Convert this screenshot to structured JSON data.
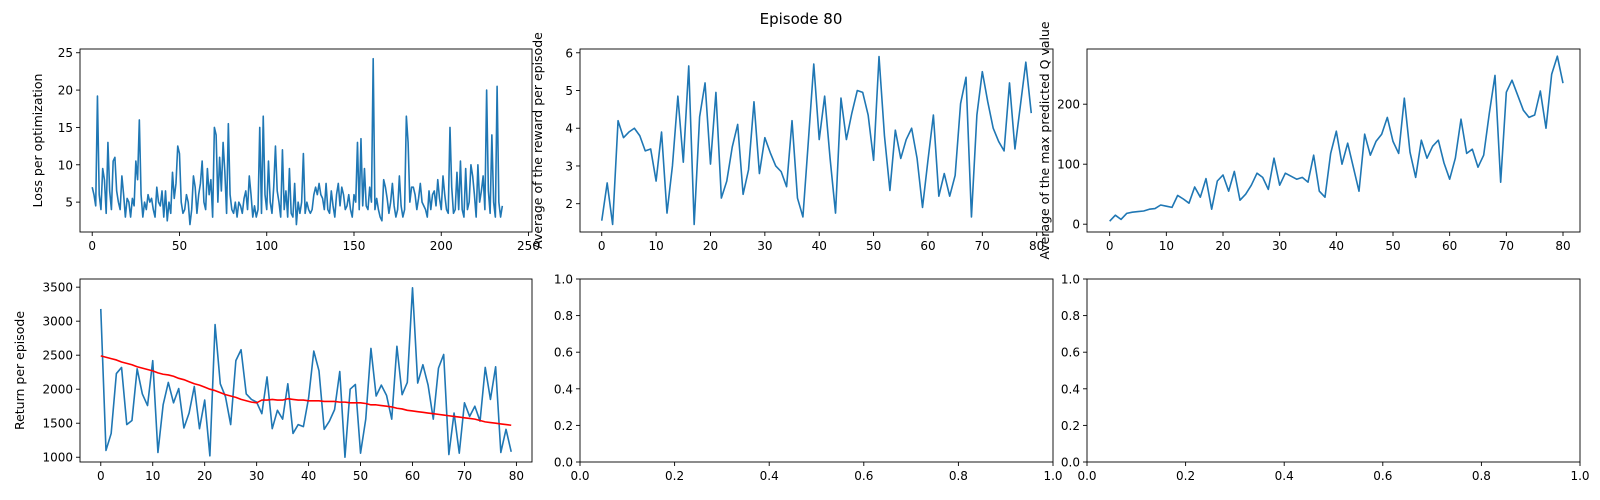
{
  "figure": {
    "title": "Episode 80"
  },
  "colors": {
    "series": "#1f77b4",
    "trend": "#ff0000",
    "axis": "#000000"
  },
  "chart_data": [
    {
      "type": "line",
      "xlabel": "",
      "ylabel": "Loss per optimization",
      "xlim": [
        -7,
        252
      ],
      "ylim": [
        1.0,
        25.5
      ],
      "xticks": [
        0,
        50,
        100,
        150,
        200,
        250
      ],
      "yticks": [
        5,
        10,
        15,
        20,
        25
      ],
      "series": [
        {
          "name": "",
          "x_start": 0,
          "x_step": 1,
          "y": [
            7.0,
            6.0,
            4.5,
            19.2,
            6.0,
            4.0,
            9.5,
            8.0,
            3.5,
            13.0,
            6.5,
            4.0,
            10.5,
            11.0,
            6.5,
            5.0,
            4.0,
            8.5,
            6.0,
            3.0,
            5.5,
            5.0,
            3.0,
            5.5,
            4.5,
            10.5,
            8.0,
            16.0,
            6.0,
            3.0,
            5.0,
            4.0,
            6.0,
            5.0,
            5.5,
            4.0,
            3.0,
            7.0,
            5.0,
            4.5,
            6.5,
            3.0,
            6.5,
            2.5,
            5.0,
            3.5,
            9.0,
            5.5,
            7.5,
            12.5,
            11.5,
            5.0,
            3.5,
            4.0,
            6.0,
            5.0,
            2.0,
            4.0,
            8.5,
            7.0,
            3.5,
            6.0,
            7.5,
            10.5,
            5.0,
            4.0,
            9.5,
            6.0,
            8.0,
            3.0,
            15.0,
            14.0,
            5.0,
            11.0,
            6.5,
            13.0,
            9.0,
            3.5,
            15.5,
            6.0,
            4.0,
            3.5,
            5.0,
            3.0,
            5.0,
            4.5,
            3.5,
            5.5,
            6.5,
            4.0,
            8.5,
            6.0,
            3.0,
            4.5,
            3.0,
            4.0,
            15.0,
            3.5,
            16.5,
            6.0,
            4.0,
            10.5,
            5.0,
            3.5,
            7.0,
            12.5,
            6.5,
            5.0,
            3.0,
            12.0,
            4.0,
            6.5,
            3.0,
            9.5,
            3.5,
            3.0,
            7.5,
            2.0,
            5.0,
            3.5,
            5.0,
            11.5,
            3.5,
            5.0,
            4.0,
            3.5,
            4.0,
            6.0,
            7.0,
            6.0,
            7.5,
            6.0,
            5.5,
            4.0,
            7.5,
            4.0,
            3.5,
            6.5,
            4.5,
            3.0,
            6.0,
            7.5,
            4.5,
            7.0,
            6.0,
            4.0,
            4.5,
            6.0,
            4.0,
            3.0,
            6.0,
            5.0,
            13.0,
            4.0,
            13.5,
            4.5,
            9.5,
            4.5,
            4.0,
            7.0,
            5.0,
            24.2,
            4.0,
            5.5,
            4.0,
            3.0,
            2.5,
            8.0,
            7.0,
            5.5,
            3.5,
            5.0,
            7.5,
            4.5,
            3.0,
            4.0,
            8.5,
            4.5,
            3.0,
            4.0,
            16.5,
            13.0,
            5.0,
            7.0,
            7.0,
            6.0,
            4.0,
            5.5,
            7.5,
            5.0,
            4.5,
            4.0,
            3.0,
            6.5,
            4.0,
            6.0,
            6.5,
            4.5,
            8.0,
            5.5,
            4.0,
            8.5,
            6.0,
            4.0,
            3.5,
            15.0,
            7.0,
            3.5,
            4.0,
            9.0,
            4.0,
            10.5,
            4.0,
            3.0,
            9.5,
            4.0,
            5.0,
            10.0,
            8.5,
            6.0,
            3.0,
            10.0,
            5.0,
            6.5,
            8.5,
            4.0,
            20.0,
            6.5,
            3.5,
            14.0,
            5.0,
            3.0,
            20.5,
            5.0,
            3.0,
            4.5
          ]
        }
      ]
    },
    {
      "type": "line",
      "xlabel": "",
      "ylabel": "Average of the reward per episode",
      "xlim": [
        -4,
        83
      ],
      "ylim": [
        1.25,
        6.1
      ],
      "xticks": [
        0,
        10,
        20,
        30,
        40,
        50,
        60,
        70,
        80
      ],
      "yticks": [
        2,
        3,
        4,
        5,
        6
      ],
      "series": [
        {
          "name": "",
          "x_start": 0,
          "x_step": 1,
          "y": [
            1.55,
            2.55,
            1.45,
            4.2,
            3.75,
            3.9,
            4.0,
            3.8,
            3.4,
            3.45,
            2.6,
            3.9,
            1.75,
            3.0,
            4.85,
            3.1,
            5.65,
            1.45,
            4.3,
            5.2,
            3.05,
            4.95,
            2.15,
            2.6,
            3.5,
            4.1,
            2.25,
            2.9,
            4.7,
            2.8,
            3.75,
            3.35,
            3.0,
            2.85,
            2.45,
            4.2,
            2.15,
            1.65,
            3.65,
            5.7,
            3.7,
            4.85,
            3.2,
            1.75,
            4.8,
            3.7,
            4.4,
            5.0,
            4.95,
            4.35,
            3.15,
            5.9,
            3.8,
            2.35,
            3.95,
            3.2,
            3.7,
            4.0,
            3.2,
            1.9,
            3.15,
            4.35,
            2.2,
            2.8,
            2.2,
            2.75,
            4.65,
            5.35,
            1.65,
            4.35,
            5.5,
            4.7,
            4.0,
            3.65,
            3.4,
            5.2,
            3.45,
            4.6,
            5.75,
            4.4
          ]
        }
      ]
    },
    {
      "type": "line",
      "xlabel": "",
      "ylabel": "Average of the max predicted Q value",
      "xlim": [
        -4,
        83
      ],
      "ylim": [
        -13,
        292
      ],
      "xticks": [
        0,
        10,
        20,
        30,
        40,
        50,
        60,
        70,
        80
      ],
      "yticks": [
        0,
        100,
        200
      ],
      "series": [
        {
          "name": "",
          "x_start": 0,
          "x_step": 1,
          "y": [
            5,
            15,
            8,
            18,
            20,
            21,
            22,
            25,
            26,
            32,
            30,
            28,
            48,
            42,
            35,
            62,
            45,
            76,
            25,
            72,
            82,
            55,
            88,
            40,
            50,
            65,
            85,
            78,
            58,
            110,
            65,
            85,
            80,
            75,
            78,
            70,
            115,
            55,
            45,
            118,
            155,
            100,
            135,
            95,
            55,
            150,
            115,
            138,
            150,
            178,
            138,
            118,
            210,
            120,
            78,
            140,
            110,
            130,
            140,
            102,
            75,
            110,
            175,
            118,
            125,
            95,
            115,
            185,
            248,
            70,
            220,
            240,
            215,
            190,
            178,
            182,
            222,
            160,
            250,
            280,
            235
          ]
        }
      ]
    },
    {
      "type": "line",
      "xlabel": "",
      "ylabel": "Return per episode",
      "xlim": [
        -4,
        83
      ],
      "ylim": [
        930,
        3620
      ],
      "xticks": [
        0,
        10,
        20,
        30,
        40,
        50,
        60,
        70,
        80
      ],
      "yticks": [
        1000,
        1500,
        2000,
        2500,
        3000,
        3500
      ],
      "series": [
        {
          "name": "",
          "x_start": 0,
          "x_step": 1,
          "y": [
            3180,
            1100,
            1350,
            2230,
            2320,
            1480,
            1540,
            2300,
            1930,
            1760,
            2420,
            1070,
            1770,
            2100,
            1800,
            2010,
            1430,
            1650,
            2040,
            1420,
            1840,
            1020,
            2950,
            2080,
            1890,
            1480,
            2420,
            2580,
            1930,
            1850,
            1810,
            1640,
            2180,
            1420,
            1690,
            1560,
            2080,
            1350,
            1480,
            1450,
            1870,
            2560,
            2270,
            1410,
            1530,
            1700,
            2260,
            1000,
            2000,
            2070,
            1060,
            1560,
            2600,
            1900,
            2060,
            1910,
            1560,
            2630,
            1920,
            2100,
            3490,
            2090,
            2360,
            2060,
            1560,
            2310,
            2510,
            1040,
            1650,
            1060,
            1800,
            1600,
            1750,
            1530,
            2320,
            1850,
            2330,
            1070,
            1410,
            1080
          ]
        },
        {
          "name": "",
          "x_start": 0,
          "x_step": 1,
          "trend": true,
          "y": [
            2490,
            2470,
            2450,
            2430,
            2400,
            2380,
            2360,
            2330,
            2310,
            2290,
            2270,
            2240,
            2220,
            2210,
            2190,
            2160,
            2140,
            2110,
            2080,
            2060,
            2030,
            2000,
            1980,
            1950,
            1920,
            1900,
            1880,
            1850,
            1830,
            1810,
            1800,
            1840,
            1840,
            1850,
            1840,
            1840,
            1860,
            1850,
            1840,
            1840,
            1830,
            1830,
            1830,
            1820,
            1820,
            1820,
            1810,
            1810,
            1800,
            1800,
            1800,
            1790,
            1770,
            1770,
            1760,
            1750,
            1740,
            1720,
            1710,
            1690,
            1680,
            1670,
            1660,
            1650,
            1640,
            1630,
            1620,
            1610,
            1600,
            1590,
            1580,
            1570,
            1560,
            1540,
            1520,
            1510,
            1500,
            1490,
            1480,
            1470
          ]
        }
      ]
    },
    {
      "type": "line",
      "xlabel": "",
      "ylabel": "",
      "xlim": [
        0.0,
        1.0
      ],
      "ylim": [
        0.0,
        1.0
      ],
      "xticks": [
        0.0,
        0.2,
        0.4,
        0.6,
        0.8,
        1.0
      ],
      "yticks": [
        0.0,
        0.2,
        0.4,
        0.6,
        0.8,
        1.0
      ],
      "series": []
    },
    {
      "type": "line",
      "xlabel": "",
      "ylabel": "",
      "xlim": [
        0.0,
        1.0
      ],
      "ylim": [
        0.0,
        1.0
      ],
      "xticks": [
        0.0,
        0.2,
        0.4,
        0.6,
        0.8,
        1.0
      ],
      "yticks": [
        0.0,
        0.2,
        0.4,
        0.6,
        0.8,
        1.0
      ],
      "series": []
    }
  ]
}
